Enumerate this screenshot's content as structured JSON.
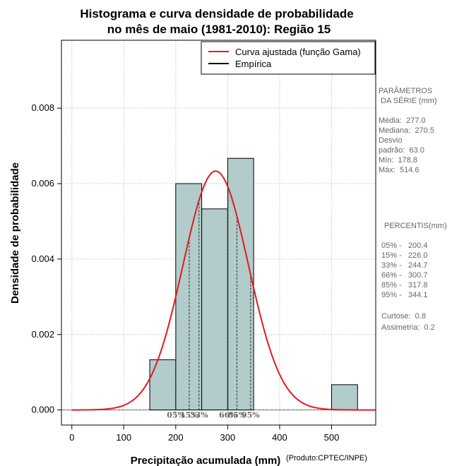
{
  "chart_data": {
    "type": "bar",
    "title": [
      "Histograma e curva densidade de probabilidade",
      "no mês de maio (1981-2010): Região 15"
    ],
    "xlabel": "Precipitação acumulada (mm)",
    "ylabel": "Densidade de probabilidade",
    "credit": "(Produto:CPTEC/INPE)",
    "xlim": [
      -20,
      585
    ],
    "ylim": [
      -0.0004,
      0.0098
    ],
    "xticks": [
      0,
      100,
      200,
      300,
      400,
      500
    ],
    "xtick_labels": [
      "0",
      "100",
      "200",
      "300",
      "400",
      "500"
    ],
    "yticks": [
      0.0,
      0.002,
      0.004,
      0.006,
      0.008
    ],
    "ytick_labels": [
      "0.000",
      "0.002",
      "0.004",
      "0.006",
      "0.008"
    ],
    "grid": true,
    "bins": [
      {
        "start": 150,
        "end": 200,
        "density": 0.00133
      },
      {
        "start": 200,
        "end": 250,
        "density": 0.006
      },
      {
        "start": 250,
        "end": 300,
        "density": 0.00533
      },
      {
        "start": 300,
        "end": 350,
        "density": 0.00667
      },
      {
        "start": 500,
        "end": 550,
        "density": 0.00067
      }
    ],
    "fitted_curve": {
      "name": "Curva ajustada (função Gama)",
      "mean": 277.0,
      "sd": 63.0,
      "color": "#e41a1c"
    },
    "legend": [
      {
        "label": "Curva ajustada (função Gama)",
        "color": "#e41a1c"
      },
      {
        "label": "Empírica",
        "color": "#000000"
      }
    ],
    "percentile_lines": [
      {
        "label": "05%",
        "value": 200.4
      },
      {
        "label": "15%",
        "value": 226.0
      },
      {
        "label": "33%",
        "value": 244.7
      },
      {
        "label": "66%",
        "value": 300.7
      },
      {
        "label": "85%",
        "value": 317.8
      },
      {
        "label": "95%",
        "value": 344.1
      }
    ],
    "bar_color": "#b2cbcb",
    "side_panel": {
      "params_title": [
        "PARÂMETROS",
        " DA SÉRIE (mm)"
      ],
      "params": [
        "Média:  277.0",
        "Mediana:  270.5",
        "Desvio",
        "padrão:  63.0",
        "Mín:  178.8",
        "Máx:  514.6"
      ],
      "percentis_title": "PERCENTIS(mm)",
      "percentis": [
        "05% -   200.4",
        "15% -   226.0",
        "33% -   244.7",
        "66% -   300.7",
        "85% -   317.8",
        "95% -   344.1"
      ],
      "stats": [
        "Curtose:  0.8",
        "Assimetria:  0.2"
      ]
    }
  }
}
